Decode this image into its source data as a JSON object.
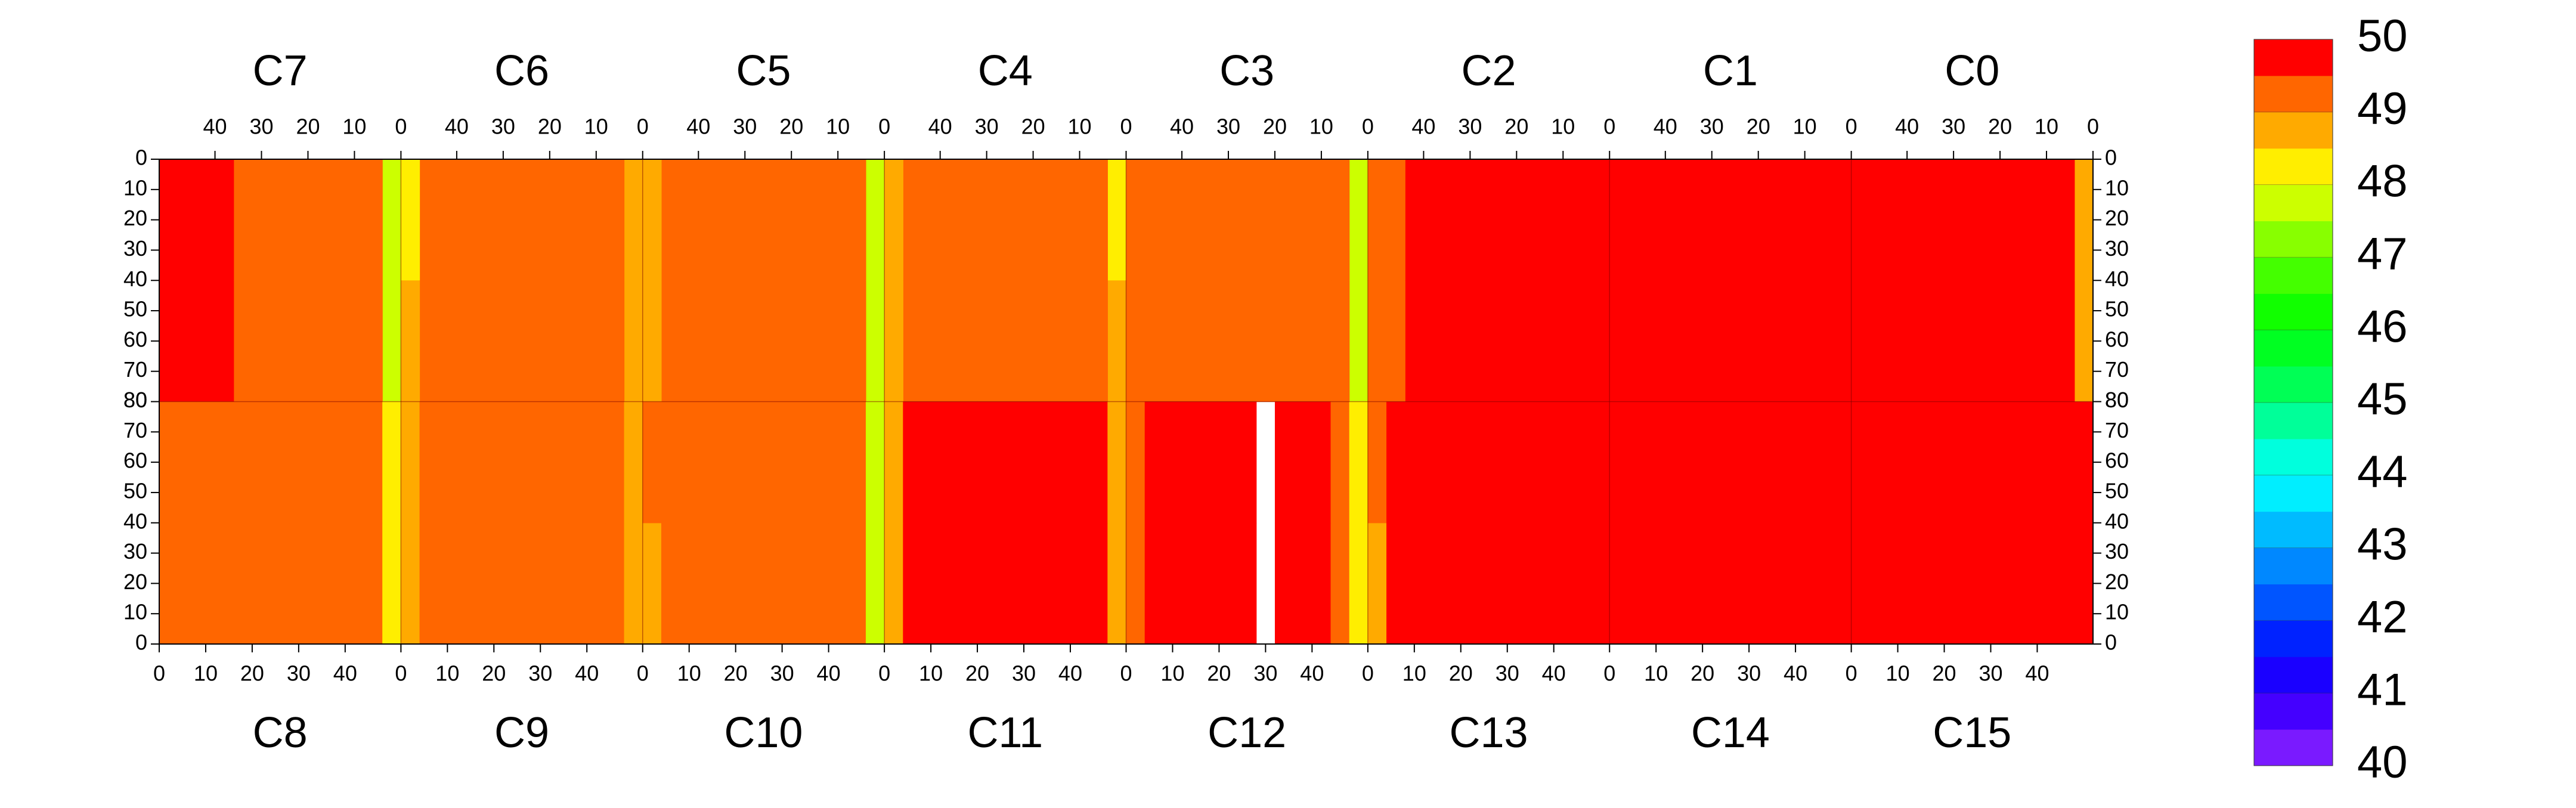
{
  "chart_data": {
    "type": "heatmap",
    "xlim": [
      0,
      52
    ],
    "xticks": [
      0,
      10,
      20,
      30,
      40
    ],
    "ylim": [
      0,
      80
    ],
    "yticks": [
      0,
      10,
      20,
      30,
      40,
      50,
      60,
      70,
      80
    ],
    "panels": {
      "top": [
        {
          "name": "C7",
          "z": [
            [
              47.8,
              49.2,
              49.4,
              49.4,
              49.3,
              49.4,
              49.4,
              49.4,
              49.4,
              49.5,
              49.6,
              50,
              50
            ],
            [
              47.9,
              49.2,
              49.4,
              49.4,
              49.4,
              49.3,
              49.4,
              49.4,
              49.4,
              49.5,
              49.6,
              50,
              49.9
            ]
          ]
        },
        {
          "name": "C6",
          "z": [
            [
              48.7,
              49.3,
              49.3,
              49.2,
              49.3,
              49.3,
              49.3,
              49.2,
              49.3,
              49.3,
              49.3,
              49.2,
              48.4
            ],
            [
              48.8,
              49.3,
              49.3,
              49.3,
              49.2,
              49.3,
              49.3,
              49.3,
              49.2,
              49.3,
              49.3,
              49.3,
              48.5
            ]
          ]
        },
        {
          "name": "C5",
          "z": [
            [
              47.6,
              49.2,
              49.2,
              49.1,
              49.2,
              49.2,
              49.1,
              49.2,
              49.2,
              49.2,
              49.1,
              49.2,
              48.8
            ],
            [
              47.5,
              49.1,
              49.2,
              49.2,
              49.1,
              49.2,
              49.2,
              49.1,
              49.2,
              49.2,
              49.2,
              49.1,
              48.7
            ]
          ]
        },
        {
          "name": "C4",
          "z": [
            [
              48.4,
              49.3,
              49.3,
              49.2,
              49.3,
              49.3,
              49.3,
              49.2,
              49.3,
              49.3,
              49.2,
              49.3,
              48.9
            ],
            [
              48.5,
              49.3,
              49.3,
              49.3,
              49.3,
              49.2,
              49.3,
              49.3,
              49.3,
              49.2,
              49.3,
              49.3,
              48.9
            ]
          ]
        },
        {
          "name": "C3",
          "z": [
            [
              47.9,
              49.3,
              49.3,
              49.3,
              49.2,
              49.3,
              49.3,
              49.3,
              49.2,
              49.3,
              49.3,
              49.3,
              49.0
            ],
            [
              47.8,
              49.2,
              49.3,
              49.3,
              49.3,
              49.3,
              49.2,
              49.3,
              49.3,
              49.3,
              49.3,
              49.2,
              49.0
            ]
          ]
        },
        {
          "name": "C2",
          "z": [
            [
              50,
              50,
              50,
              50,
              50,
              50,
              49.8,
              49.5,
              49.5,
              49.5,
              49.5,
              49.4,
              49.0
            ],
            [
              50,
              50,
              50,
              50,
              50,
              50,
              49.8,
              49.5,
              49.5,
              49.5,
              49.5,
              49.4,
              49.1
            ]
          ]
        },
        {
          "name": "C1",
          "z": [
            [
              49.6,
              49.9,
              49.9,
              49.9,
              49.8,
              49.9,
              49.9,
              49.9,
              49.9,
              49.9,
              49.9,
              50,
              50
            ],
            [
              49.6,
              49.9,
              49.9,
              49.9,
              49.9,
              49.8,
              49.9,
              49.9,
              49.9,
              49.9,
              50,
              50,
              50
            ]
          ]
        },
        {
          "name": "C0",
          "z": [
            [
              48.6,
              49.8,
              49.9,
              49.9,
              49.9,
              49.9,
              49.9,
              49.9,
              49.9,
              49.9,
              49.9,
              49.9,
              49.7
            ],
            [
              48.8,
              49.8,
              49.9,
              49.9,
              49.9,
              49.9,
              49.9,
              49.9,
              49.9,
              49.9,
              49.9,
              49.9,
              49.7
            ]
          ]
        }
      ],
      "bottom": [
        {
          "name": "C8",
          "z": [
            [
              49.3,
              49.4,
              49.4,
              49.4,
              49.4,
              49.4,
              49.4,
              49.4,
              49.4,
              49.4,
              49.4,
              49.3,
              48.0
            ],
            [
              49.3,
              49.4,
              49.4,
              49.4,
              49.4,
              49.4,
              49.4,
              49.4,
              49.4,
              49.4,
              49.4,
              49.3,
              48.1
            ]
          ]
        },
        {
          "name": "C9",
          "z": [
            [
              48.5,
              49.3,
              49.3,
              49.3,
              49.3,
              49.3,
              49.3,
              49.3,
              49.3,
              49.3,
              49.3,
              49.3,
              48.7
            ],
            [
              48.6,
              49.3,
              49.3,
              49.3,
              49.3,
              49.3,
              49.3,
              49.3,
              49.3,
              49.3,
              49.3,
              49.3,
              48.8
            ]
          ]
        },
        {
          "name": "C10",
          "z": [
            [
              48.9,
              49.3,
              49.3,
              49.3,
              49.3,
              49.3,
              49.3,
              49.3,
              49.3,
              49.3,
              49.3,
              49.3,
              47.8
            ],
            [
              49.0,
              49.3,
              49.3,
              49.3,
              49.3,
              49.3,
              49.3,
              49.3,
              49.3,
              49.3,
              49.3,
              49.3,
              47.9
            ]
          ]
        },
        {
          "name": "C11",
          "z": [
            [
              48.7,
              49.8,
              49.8,
              49.8,
              49.8,
              49.8,
              49.8,
              49.8,
              49.8,
              49.8,
              49.8,
              49.8,
              48.7
            ],
            [
              48.8,
              49.8,
              49.8,
              49.8,
              49.8,
              49.8,
              49.8,
              49.8,
              49.8,
              49.8,
              49.8,
              49.8,
              48.8
            ]
          ]
        },
        {
          "name": "C12",
          "z": [
            [
              49.1,
              49.5,
              49.5,
              49.5,
              49.5,
              49.5,
              49.5,
              null,
              49.5,
              49.5,
              49.5,
              49.4,
              48.2
            ],
            [
              49.2,
              49.5,
              49.5,
              49.5,
              49.5,
              49.5,
              49.5,
              null,
              49.5,
              49.5,
              49.5,
              49.4,
              48.3
            ]
          ]
        },
        {
          "name": "C13",
          "z": [
            [
              48.9,
              49.5,
              49.5,
              49.5,
              49.5,
              49.5,
              49.7,
              50,
              50,
              50,
              50,
              50,
              50
            ],
            [
              49.0,
              49.5,
              49.5,
              49.5,
              49.5,
              49.5,
              49.7,
              50,
              50,
              50,
              50,
              50,
              50
            ]
          ]
        },
        {
          "name": "C14",
          "z": [
            [
              49.9,
              50,
              50,
              50,
              49.9,
              50,
              50,
              50,
              49.9,
              50,
              50,
              50,
              49.9
            ],
            [
              50,
              50,
              50,
              49.9,
              50,
              50,
              50,
              50,
              50,
              49.9,
              50,
              50,
              50
            ]
          ]
        },
        {
          "name": "C15",
          "z": [
            [
              49.9,
              49.9,
              50,
              49.9,
              50,
              49.9,
              50,
              49.9,
              50,
              50,
              49.9,
              50,
              50
            ],
            [
              49.9,
              50,
              49.9,
              50,
              50,
              50,
              49.9,
              50,
              50,
              50,
              50,
              49.9,
              50
            ]
          ]
        }
      ]
    },
    "colorbar": {
      "lim": [
        40,
        50
      ],
      "ticks": [
        40,
        41,
        42,
        43,
        44,
        45,
        46,
        47,
        48,
        49,
        50
      ],
      "colors": [
        "#7a1aff",
        "#4400ff",
        "#1a00ff",
        "#0022ff",
        "#0055ff",
        "#0088ff",
        "#00bbff",
        "#00eeff",
        "#00ffdd",
        "#00ff99",
        "#00ff55",
        "#00ff22",
        "#11ff00",
        "#44ff00",
        "#88ff00",
        "#ccff00",
        "#ffee00",
        "#ffaa00",
        "#ff6600",
        "#ff0000"
      ]
    }
  }
}
